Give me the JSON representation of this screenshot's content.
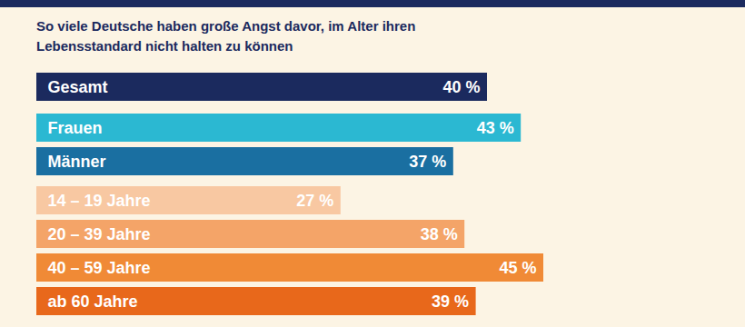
{
  "chart_data": {
    "type": "bar",
    "orientation": "horizontal",
    "title": "So viele Deutsche haben große Angst davor, im Alter ihren Lebensstandard nicht halten zu können",
    "categories": [
      "Gesamt",
      "Frauen",
      "Männer",
      "14 – 19 Jahre",
      "20 – 39 Jahre",
      "40 – 59 Jahre",
      "ab 60 Jahre"
    ],
    "values": [
      40,
      43,
      37,
      27,
      38,
      45,
      39
    ],
    "value_labels": [
      "40 %",
      "43 %",
      "37 %",
      "27 %",
      "38 %",
      "45 %",
      "39 %"
    ],
    "colors": [
      "#1b2a5e",
      "#2bb8d2",
      "#1a6fa1",
      "#f8c8a2",
      "#f4a468",
      "#f08a36",
      "#e8681b"
    ],
    "xlim": [
      0,
      45
    ],
    "data_labels": true,
    "tick_labels": false,
    "grid": false
  }
}
